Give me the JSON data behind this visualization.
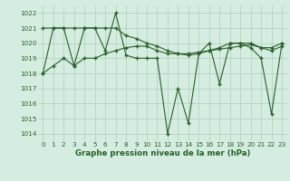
{
  "title": "Graphe pression niveau de la mer (hPa)",
  "background_color": "#d4ede0",
  "line_color": "#2a5e2a",
  "grid_color": "#b0ccbb",
  "x_labels": [
    "0",
    "1",
    "2",
    "3",
    "4",
    "5",
    "6",
    "7",
    "8",
    "9",
    "10",
    "11",
    "12",
    "13",
    "14",
    "15",
    "16",
    "17",
    "18",
    "19",
    "20",
    "21",
    "22",
    "23"
  ],
  "ylim": [
    1013.5,
    1022.5
  ],
  "yticks": [
    1014,
    1015,
    1016,
    1017,
    1018,
    1019,
    1020,
    1021,
    1022
  ],
  "series": [
    [
      1018.0,
      1021.0,
      1021.0,
      1018.5,
      1021.0,
      1021.0,
      1019.5,
      1022.0,
      1019.2,
      1019.0,
      1019.0,
      1019.0,
      1014.0,
      1017.0,
      1014.7,
      1019.3,
      1020.0,
      1017.3,
      1020.0,
      1020.0,
      1019.7,
      1019.0,
      1015.3,
      1020.0
    ],
    [
      1021.0,
      1021.0,
      1021.0,
      1021.0,
      1021.0,
      1021.0,
      1021.0,
      1021.0,
      1020.5,
      1020.3,
      1020.0,
      1019.8,
      1019.5,
      1019.3,
      1019.2,
      1019.3,
      1019.5,
      1019.7,
      1020.0,
      1020.0,
      1020.0,
      1019.7,
      1019.7,
      1020.0
    ],
    [
      1018.0,
      1018.5,
      1019.0,
      1018.5,
      1019.0,
      1019.0,
      1019.3,
      1019.5,
      1019.7,
      1019.8,
      1019.8,
      1019.5,
      1019.3,
      1019.3,
      1019.3,
      1019.4,
      1019.5,
      1019.6,
      1019.7,
      1019.8,
      1019.9,
      1019.7,
      1019.5,
      1019.8
    ]
  ],
  "figsize": [
    3.2,
    2.0
  ],
  "dpi": 100,
  "marker": "+",
  "markersize": 3,
  "markeredgewidth": 1.0,
  "linewidth": 0.8,
  "xlabel_fontsize": 6.2,
  "tick_fontsize": 5.2
}
